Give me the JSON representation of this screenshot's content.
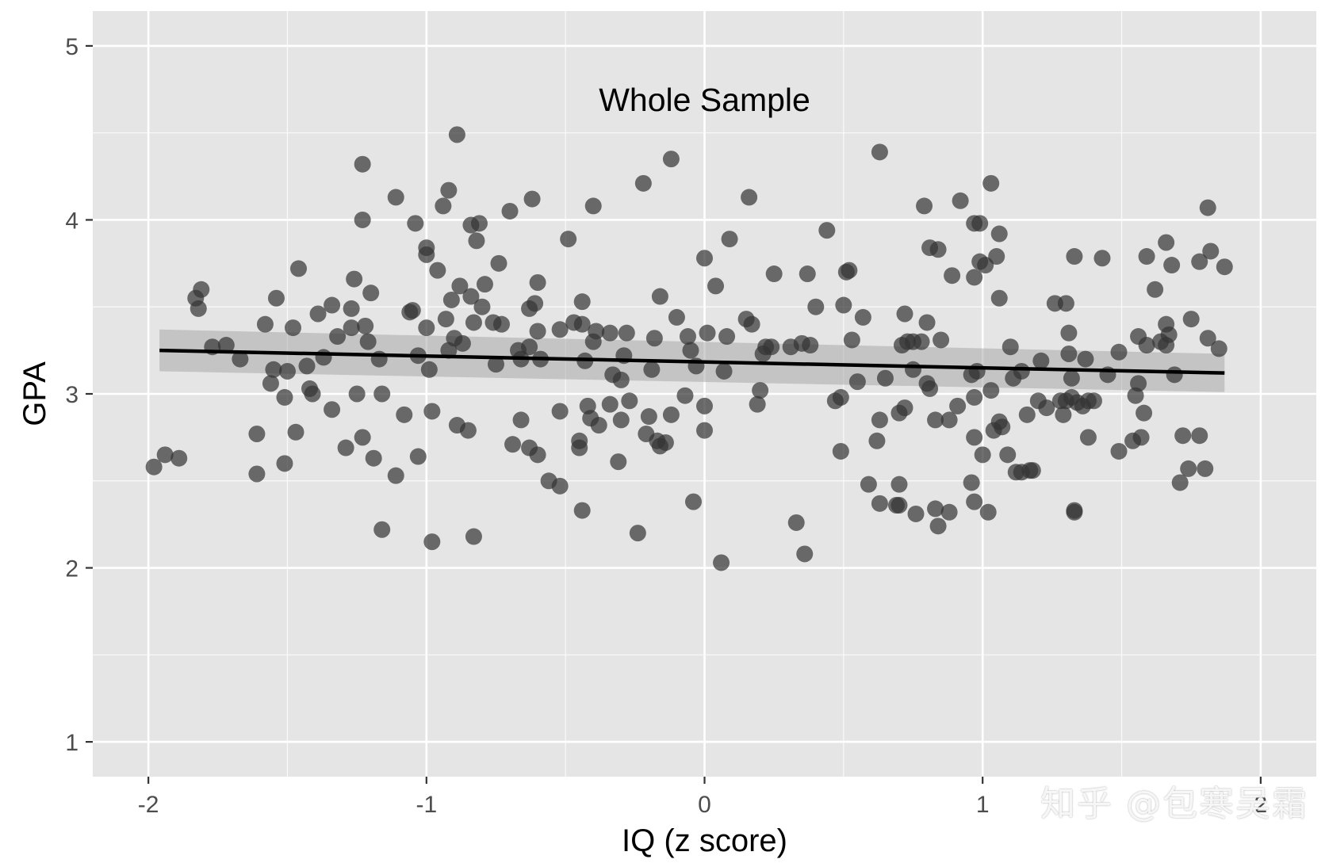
{
  "chart_data": {
    "type": "scatter",
    "title": "Whole Sample",
    "xlabel": "IQ (z score)",
    "ylabel": "GPA",
    "xlim": [
      -2.2,
      2.2
    ],
    "ylim": [
      0.8,
      5.2
    ],
    "xticks": [
      -2,
      -1,
      0,
      1,
      2
    ],
    "xtick_labels": [
      "-2",
      "-1",
      "0",
      "1",
      "2"
    ],
    "yticks": [
      1,
      2,
      3,
      4,
      5
    ],
    "ytick_labels": [
      "1",
      "2",
      "3",
      "4",
      "5"
    ],
    "grid": true,
    "colors": {
      "panel_background": "#e5e5e5",
      "grid": "#ffffff",
      "point": "#333333",
      "regression_line": "#000000",
      "confidence_band": "#a9a9a9"
    },
    "regression": {
      "x_range": [
        -1.96,
        1.87
      ],
      "y_start": 3.25,
      "y_end": 3.12,
      "band_start": [
        3.13,
        3.37
      ],
      "band_end": [
        3.01,
        3.23
      ]
    },
    "points": [
      [
        -1.98,
        2.58
      ],
      [
        -1.94,
        2.65
      ],
      [
        -1.89,
        2.63
      ],
      [
        -1.83,
        3.55
      ],
      [
        -1.82,
        3.49
      ],
      [
        -1.81,
        3.6
      ],
      [
        -1.77,
        3.27
      ],
      [
        -1.72,
        3.28
      ],
      [
        -1.67,
        3.2
      ],
      [
        -1.61,
        2.77
      ],
      [
        -1.61,
        2.54
      ],
      [
        -1.58,
        3.4
      ],
      [
        -1.56,
        3.06
      ],
      [
        -1.55,
        3.14
      ],
      [
        -1.54,
        3.55
      ],
      [
        -1.51,
        2.98
      ],
      [
        -1.51,
        2.6
      ],
      [
        -1.5,
        3.13
      ],
      [
        -1.48,
        3.38
      ],
      [
        -1.47,
        2.78
      ],
      [
        -1.46,
        3.72
      ],
      [
        -1.43,
        3.16
      ],
      [
        -1.42,
        3.03
      ],
      [
        -1.41,
        3.0
      ],
      [
        -1.39,
        3.46
      ],
      [
        -1.37,
        3.21
      ],
      [
        -1.34,
        3.51
      ],
      [
        -1.34,
        2.91
      ],
      [
        -1.32,
        3.33
      ],
      [
        -1.29,
        2.69
      ],
      [
        -1.27,
        3.38
      ],
      [
        -1.27,
        3.49
      ],
      [
        -1.26,
        3.66
      ],
      [
        -1.25,
        3.0
      ],
      [
        -1.23,
        4.32
      ],
      [
        -1.23,
        4.0
      ],
      [
        -1.23,
        2.75
      ],
      [
        -1.22,
        3.39
      ],
      [
        -1.21,
        3.3
      ],
      [
        -1.2,
        3.58
      ],
      [
        -1.19,
        2.63
      ],
      [
        -1.17,
        3.2
      ],
      [
        -1.16,
        2.22
      ],
      [
        -1.16,
        3.0
      ],
      [
        -1.11,
        4.13
      ],
      [
        -1.11,
        2.53
      ],
      [
        -1.08,
        2.88
      ],
      [
        -1.06,
        3.47
      ],
      [
        -1.05,
        3.48
      ],
      [
        -1.04,
        3.98
      ],
      [
        -1.03,
        3.22
      ],
      [
        -1.03,
        2.64
      ],
      [
        -1.0,
        3.38
      ],
      [
        -1.0,
        3.84
      ],
      [
        -1.0,
        3.8
      ],
      [
        -0.99,
        3.14
      ],
      [
        -0.98,
        2.9
      ],
      [
        -0.98,
        2.15
      ],
      [
        -0.96,
        3.71
      ],
      [
        -0.94,
        4.08
      ],
      [
        -0.93,
        3.43
      ],
      [
        -0.92,
        4.17
      ],
      [
        -0.92,
        3.25
      ],
      [
        -0.91,
        3.54
      ],
      [
        -0.9,
        3.32
      ],
      [
        -0.89,
        2.82
      ],
      [
        -0.89,
        4.49
      ],
      [
        -0.88,
        3.62
      ],
      [
        -0.87,
        3.29
      ],
      [
        -0.85,
        2.79
      ],
      [
        -0.84,
        3.97
      ],
      [
        -0.84,
        3.56
      ],
      [
        -0.83,
        3.41
      ],
      [
        -0.83,
        2.18
      ],
      [
        -0.82,
        3.88
      ],
      [
        -0.81,
        3.98
      ],
      [
        -0.8,
        3.5
      ],
      [
        -0.79,
        3.63
      ],
      [
        -0.76,
        3.41
      ],
      [
        -0.75,
        3.17
      ],
      [
        -0.74,
        3.75
      ],
      [
        -0.73,
        3.4
      ],
      [
        -0.7,
        4.05
      ],
      [
        -0.69,
        2.71
      ],
      [
        -0.67,
        3.25
      ],
      [
        -0.66,
        2.85
      ],
      [
        -0.66,
        3.2
      ],
      [
        -0.63,
        3.49
      ],
      [
        -0.63,
        3.27
      ],
      [
        -0.63,
        2.69
      ],
      [
        -0.62,
        4.12
      ],
      [
        -0.61,
        3.52
      ],
      [
        -0.6,
        2.65
      ],
      [
        -0.6,
        3.64
      ],
      [
        -0.6,
        3.36
      ],
      [
        -0.59,
        3.2
      ],
      [
        -0.56,
        2.5
      ],
      [
        -0.52,
        2.9
      ],
      [
        -0.52,
        3.37
      ],
      [
        -0.52,
        2.47
      ],
      [
        -0.49,
        3.89
      ],
      [
        -0.47,
        3.41
      ],
      [
        -0.45,
        2.73
      ],
      [
        -0.45,
        2.69
      ],
      [
        -0.44,
        3.4
      ],
      [
        -0.44,
        3.53
      ],
      [
        -0.44,
        2.33
      ],
      [
        -0.43,
        3.19
      ],
      [
        -0.42,
        2.93
      ],
      [
        -0.41,
        2.86
      ],
      [
        -0.4,
        3.3
      ],
      [
        -0.4,
        4.08
      ],
      [
        -0.39,
        3.36
      ],
      [
        -0.38,
        2.82
      ],
      [
        -0.34,
        3.35
      ],
      [
        -0.34,
        2.94
      ],
      [
        -0.33,
        3.11
      ],
      [
        -0.31,
        2.61
      ],
      [
        -0.3,
        2.85
      ],
      [
        -0.3,
        3.08
      ],
      [
        -0.29,
        3.22
      ],
      [
        -0.28,
        3.35
      ],
      [
        -0.27,
        2.96
      ],
      [
        -0.24,
        2.2
      ],
      [
        -0.22,
        4.21
      ],
      [
        -0.21,
        2.77
      ],
      [
        -0.2,
        2.87
      ],
      [
        -0.19,
        3.14
      ],
      [
        -0.18,
        3.32
      ],
      [
        -0.17,
        2.73
      ],
      [
        -0.16,
        3.56
      ],
      [
        -0.16,
        2.7
      ],
      [
        -0.14,
        2.72
      ],
      [
        -0.12,
        4.35
      ],
      [
        -0.12,
        2.88
      ],
      [
        -0.1,
        3.44
      ],
      [
        -0.07,
        2.99
      ],
      [
        -0.06,
        3.33
      ],
      [
        -0.05,
        3.25
      ],
      [
        -0.04,
        2.38
      ],
      [
        -0.03,
        3.16
      ],
      [
        0.0,
        3.78
      ],
      [
        0.0,
        2.93
      ],
      [
        0.0,
        2.79
      ],
      [
        0.01,
        3.35
      ],
      [
        0.04,
        3.62
      ],
      [
        0.06,
        2.03
      ],
      [
        0.07,
        3.13
      ],
      [
        0.08,
        3.33
      ],
      [
        0.09,
        3.89
      ],
      [
        0.15,
        3.43
      ],
      [
        0.16,
        4.13
      ],
      [
        0.17,
        3.4
      ],
      [
        0.19,
        2.94
      ],
      [
        0.2,
        3.02
      ],
      [
        0.21,
        3.23
      ],
      [
        0.22,
        3.27
      ],
      [
        0.24,
        3.27
      ],
      [
        0.25,
        3.69
      ],
      [
        0.31,
        3.27
      ],
      [
        0.33,
        2.26
      ],
      [
        0.35,
        3.29
      ],
      [
        0.36,
        2.08
      ],
      [
        0.37,
        3.69
      ],
      [
        0.38,
        3.28
      ],
      [
        0.4,
        3.5
      ],
      [
        0.44,
        3.94
      ],
      [
        0.47,
        2.96
      ],
      [
        0.49,
        2.98
      ],
      [
        0.49,
        2.67
      ],
      [
        0.5,
        3.51
      ],
      [
        0.51,
        3.7
      ],
      [
        0.52,
        3.71
      ],
      [
        0.53,
        3.31
      ],
      [
        0.55,
        3.07
      ],
      [
        0.57,
        3.44
      ],
      [
        0.59,
        2.48
      ],
      [
        0.62,
        2.73
      ],
      [
        0.63,
        2.85
      ],
      [
        0.63,
        2.37
      ],
      [
        0.63,
        4.39
      ],
      [
        0.65,
        3.09
      ],
      [
        0.69,
        2.36
      ],
      [
        0.7,
        2.36
      ],
      [
        0.7,
        2.48
      ],
      [
        0.7,
        2.89
      ],
      [
        0.71,
        3.28
      ],
      [
        0.72,
        3.46
      ],
      [
        0.72,
        2.92
      ],
      [
        0.73,
        3.3
      ],
      [
        0.75,
        3.14
      ],
      [
        0.75,
        3.3
      ],
      [
        0.76,
        2.31
      ],
      [
        0.78,
        3.3
      ],
      [
        0.79,
        4.08
      ],
      [
        0.8,
        3.06
      ],
      [
        0.8,
        3.41
      ],
      [
        0.81,
        3.03
      ],
      [
        0.81,
        3.84
      ],
      [
        0.83,
        2.85
      ],
      [
        0.83,
        2.34
      ],
      [
        0.84,
        3.83
      ],
      [
        0.84,
        2.24
      ],
      [
        0.85,
        3.31
      ],
      [
        0.88,
        2.32
      ],
      [
        0.88,
        2.85
      ],
      [
        0.89,
        3.68
      ],
      [
        0.91,
        2.93
      ],
      [
        0.92,
        4.11
      ],
      [
        0.96,
        3.11
      ],
      [
        0.96,
        2.49
      ],
      [
        0.97,
        3.67
      ],
      [
        0.97,
        2.98
      ],
      [
        0.97,
        3.98
      ],
      [
        0.97,
        2.38
      ],
      [
        0.97,
        2.75
      ],
      [
        0.98,
        3.13
      ],
      [
        0.99,
        3.98
      ],
      [
        0.99,
        3.76
      ],
      [
        1.0,
        2.65
      ],
      [
        1.01,
        3.74
      ],
      [
        1.02,
        2.32
      ],
      [
        1.03,
        4.21
      ],
      [
        1.03,
        3.02
      ],
      [
        1.04,
        2.79
      ],
      [
        1.05,
        3.79
      ],
      [
        1.06,
        3.55
      ],
      [
        1.06,
        3.92
      ],
      [
        1.06,
        2.84
      ],
      [
        1.07,
        2.81
      ],
      [
        1.09,
        2.65
      ],
      [
        1.1,
        3.27
      ],
      [
        1.11,
        3.09
      ],
      [
        1.12,
        2.55
      ],
      [
        1.14,
        3.13
      ],
      [
        1.14,
        2.55
      ],
      [
        1.16,
        2.88
      ],
      [
        1.17,
        2.56
      ],
      [
        1.18,
        2.56
      ],
      [
        1.2,
        2.96
      ],
      [
        1.21,
        3.19
      ],
      [
        1.23,
        2.92
      ],
      [
        1.26,
        3.52
      ],
      [
        1.28,
        2.96
      ],
      [
        1.29,
        2.88
      ],
      [
        1.3,
        3.52
      ],
      [
        1.3,
        2.96
      ],
      [
        1.31,
        3.23
      ],
      [
        1.31,
        3.35
      ],
      [
        1.32,
        3.09
      ],
      [
        1.32,
        2.98
      ],
      [
        1.33,
        2.33
      ],
      [
        1.33,
        3.79
      ],
      [
        1.33,
        2.32
      ],
      [
        1.34,
        2.95
      ],
      [
        1.36,
        2.93
      ],
      [
        1.37,
        3.2
      ],
      [
        1.38,
        2.75
      ],
      [
        1.38,
        2.96
      ],
      [
        1.4,
        2.96
      ],
      [
        1.43,
        3.78
      ],
      [
        1.45,
        3.11
      ],
      [
        1.49,
        3.24
      ],
      [
        1.49,
        2.67
      ],
      [
        1.54,
        2.73
      ],
      [
        1.55,
        2.99
      ],
      [
        1.56,
        3.06
      ],
      [
        1.56,
        3.33
      ],
      [
        1.57,
        2.75
      ],
      [
        1.58,
        2.89
      ],
      [
        1.59,
        3.28
      ],
      [
        1.59,
        3.79
      ],
      [
        1.62,
        3.6
      ],
      [
        1.64,
        3.3
      ],
      [
        1.66,
        3.28
      ],
      [
        1.66,
        3.4
      ],
      [
        1.66,
        3.87
      ],
      [
        1.67,
        3.34
      ],
      [
        1.68,
        3.74
      ],
      [
        1.69,
        3.11
      ],
      [
        1.71,
        2.49
      ],
      [
        1.72,
        2.76
      ],
      [
        1.74,
        2.57
      ],
      [
        1.75,
        3.43
      ],
      [
        1.78,
        2.76
      ],
      [
        1.78,
        3.76
      ],
      [
        1.8,
        2.57
      ],
      [
        1.81,
        3.32
      ],
      [
        1.81,
        4.07
      ],
      [
        1.82,
        3.82
      ],
      [
        1.85,
        3.26
      ],
      [
        1.87,
        3.73
      ]
    ]
  }
}
